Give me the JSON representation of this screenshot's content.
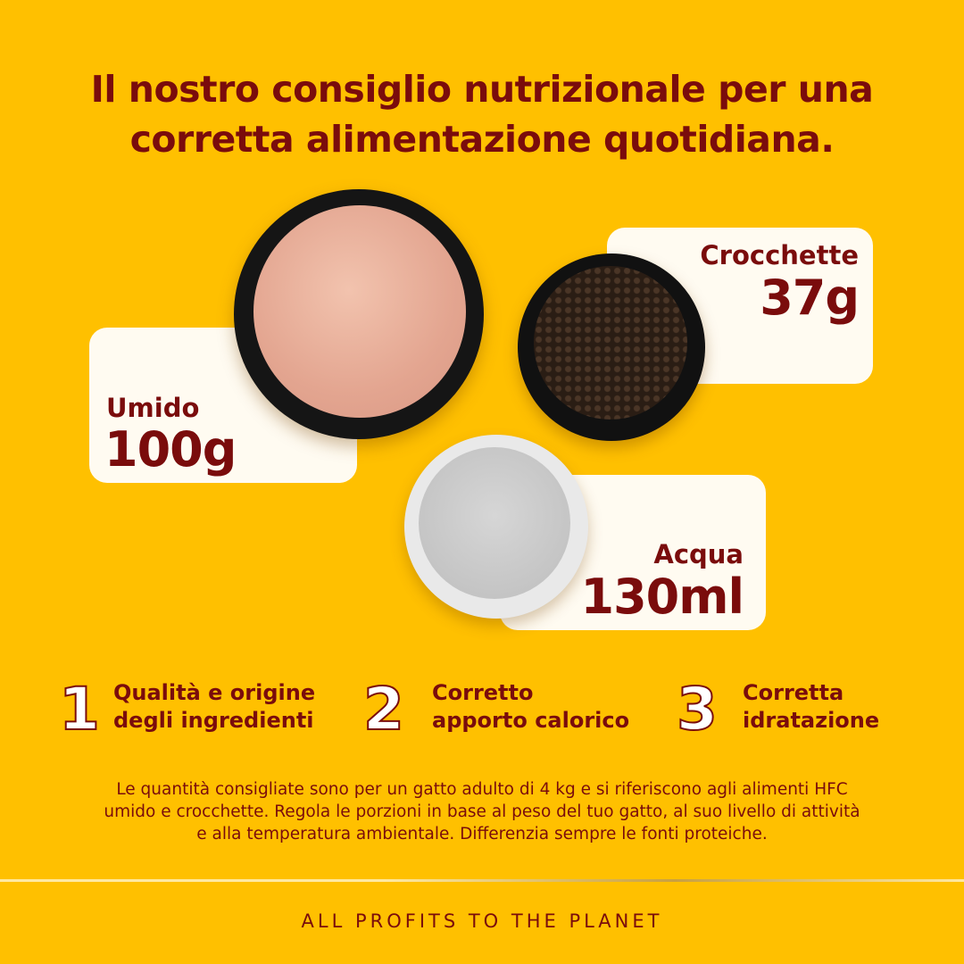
{
  "title": {
    "line1": "Il nostro consiglio nutrizionale per una",
    "line2": "corretta alimentazione quotidiana."
  },
  "portions": {
    "wet": {
      "label": "Umido",
      "value": "100g"
    },
    "kibble": {
      "label": "Crocchette",
      "value": "37g"
    },
    "water": {
      "label": "Acqua",
      "value": "130ml"
    }
  },
  "features": [
    {
      "number": "1",
      "line1": "Qualità e origine",
      "line2": "degli ingredienti"
    },
    {
      "number": "2",
      "line1": "Corretto",
      "line2": "apporto calorico"
    },
    {
      "number": "3",
      "line1": "Corretta",
      "line2": "idratazione"
    }
  ],
  "note": {
    "line1": "Le quantità consigliate sono per un gatto adulto di 4 kg e si riferiscono agli alimenti HFC",
    "line2": "umido e crocchette. Regola le porzioni in base al peso del tuo gatto, al suo livello di attività",
    "line3": "e alla temperatura ambientale. Differenzia sempre le fonti proteiche."
  },
  "footer": "ALL PROFITS TO THE PLANET",
  "colors": {
    "background": "#FFC000",
    "text": "#7A0C0C",
    "card": "#FFFBF1"
  }
}
